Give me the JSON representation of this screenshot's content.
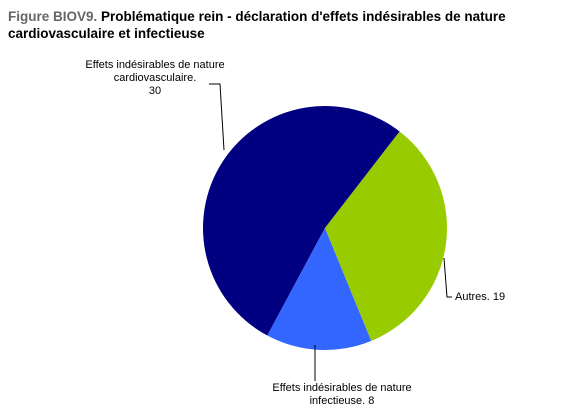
{
  "chart_data": {
    "type": "pie",
    "figure_label": "Figure BIOV9.",
    "title": "Problématique rein - déclaration d'effets indésirables de nature cardiovasculaire et infectieuse",
    "categories": [
      "Autres.",
      "Effets indésirables de nature infectieuse.",
      "Effets indésirables de nature cardiovasculaire."
    ],
    "values": [
      19,
      8,
      30
    ],
    "colors": [
      "#99cc00",
      "#3366ff",
      "#000080"
    ]
  }
}
